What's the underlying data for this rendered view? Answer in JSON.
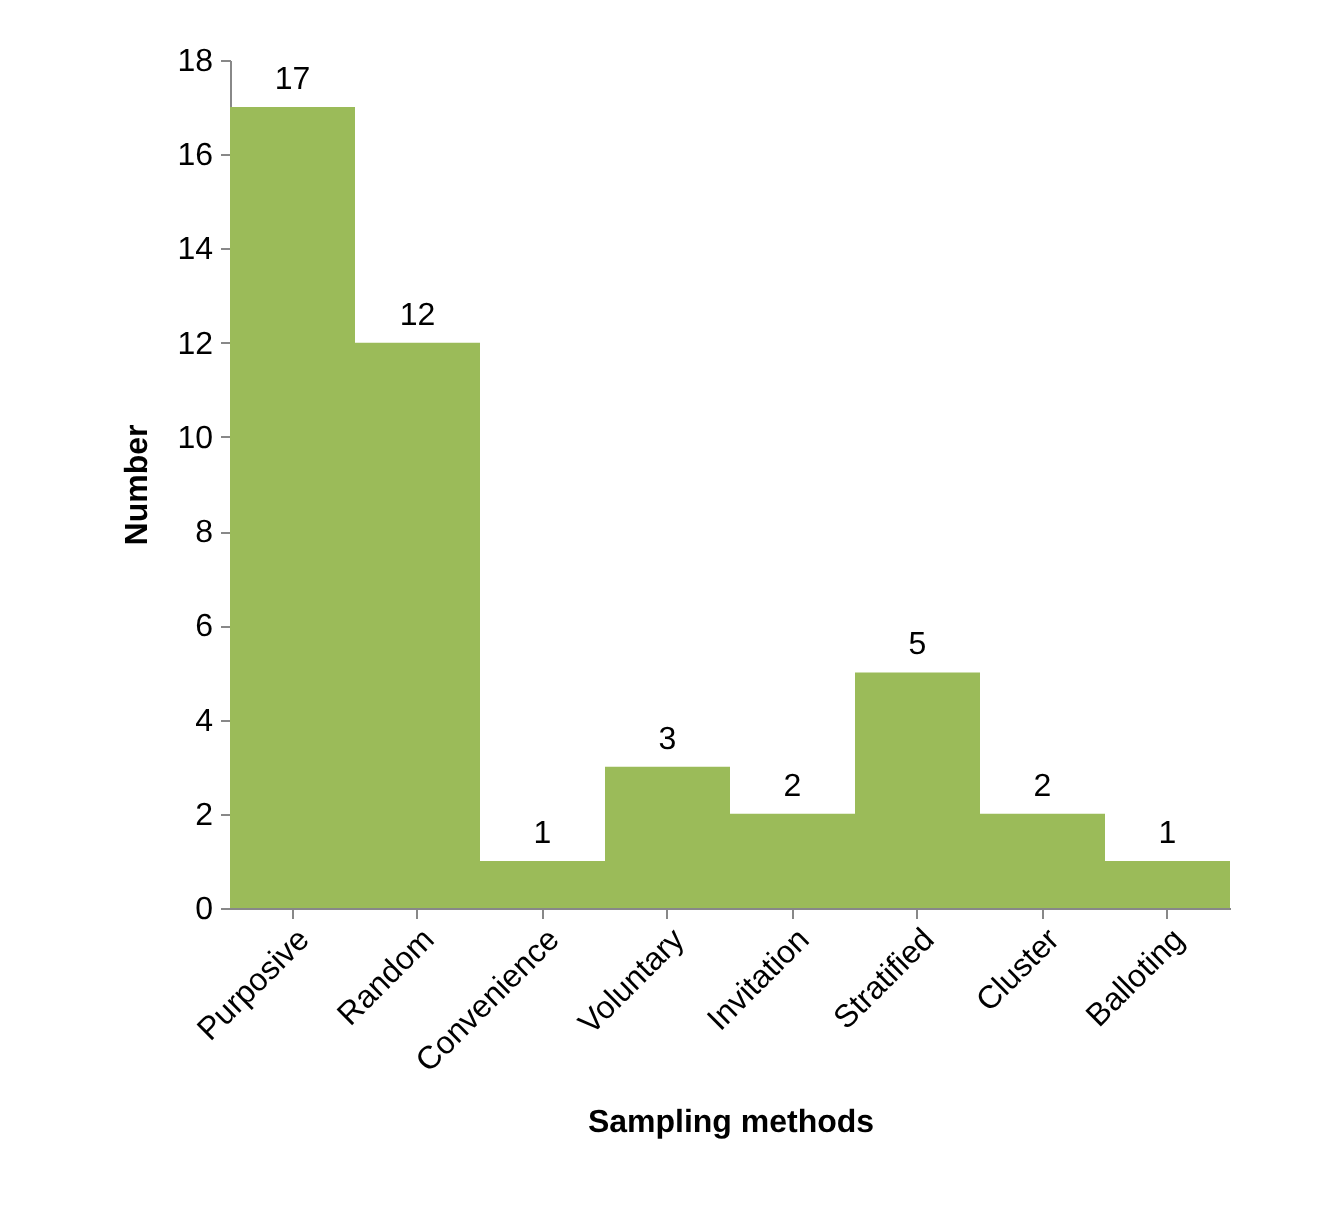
{
  "chart_data": {
    "type": "bar",
    "xlabel": "Sampling methods",
    "ylabel": "Number",
    "categories": [
      "Purposive",
      "Random",
      "Convenience",
      "Voluntary",
      "Invitation",
      "Stratified",
      "Cluster",
      "Balloting"
    ],
    "values": [
      17,
      12,
      1,
      3,
      2,
      5,
      2,
      1
    ],
    "color": "#9bbb59",
    "ylim": [
      0,
      18
    ],
    "yticks": [
      0,
      2,
      4,
      6,
      8,
      10,
      12,
      14,
      16,
      18
    ],
    "data_labels": true,
    "grid": false
  }
}
